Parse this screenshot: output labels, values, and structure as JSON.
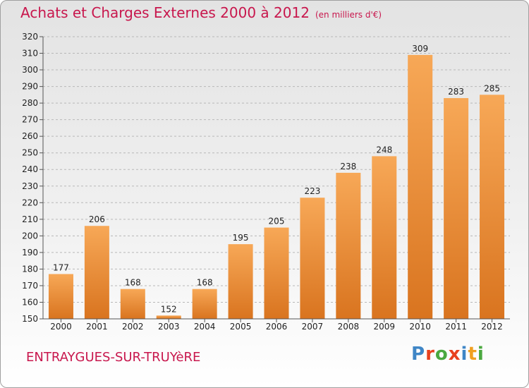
{
  "title": "Achats et Charges Externes 2000 à 2012",
  "unit": "(en milliers d'€)",
  "commune": "ENTRAYGUES-SUR-TRUYèRE",
  "logo": {
    "text": "Proxiti",
    "letter_colors": [
      "#3f86c6",
      "#e8411e",
      "#4aa83f",
      "#e8411e",
      "#3f86c6",
      "#f0a020",
      "#4aa83f"
    ]
  },
  "colors": {
    "title": "#c8174d",
    "bar_light": "#f7a857",
    "bar_dark": "#d9741f"
  },
  "chart_data": {
    "type": "bar",
    "title": "Achats et Charges Externes 2000 à 2012",
    "subtitle": "(en milliers d'€)",
    "xlabel": "",
    "ylabel": "",
    "categories": [
      "2000",
      "2001",
      "2002",
      "2003",
      "2004",
      "2005",
      "2006",
      "2007",
      "2008",
      "2009",
      "2010",
      "2011",
      "2012"
    ],
    "values": [
      177,
      206,
      168,
      152,
      168,
      195,
      205,
      223,
      238,
      248,
      309,
      283,
      285
    ],
    "ylim": [
      150,
      320
    ],
    "yticks": [
      150,
      160,
      170,
      180,
      190,
      200,
      210,
      220,
      230,
      240,
      250,
      260,
      270,
      280,
      290,
      300,
      310,
      320
    ],
    "grid": "horizontal dashed"
  }
}
